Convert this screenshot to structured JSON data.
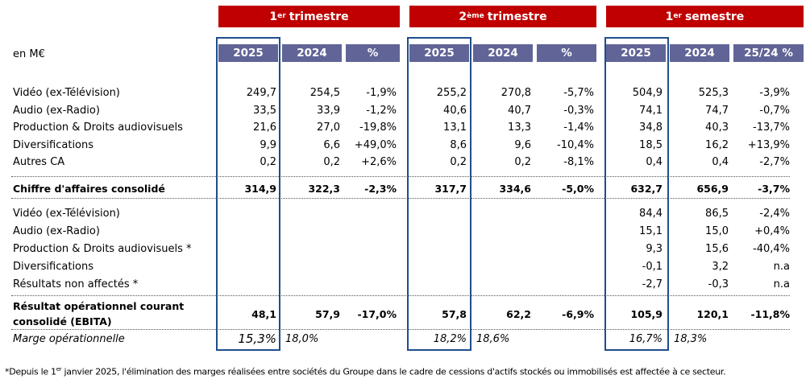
{
  "groups": [
    {
      "sup": "1",
      "sup_text": "er",
      "title": "trimestre"
    },
    {
      "sup": "2",
      "sup_text": "ème",
      "title": "trimestre"
    },
    {
      "sup": "1",
      "sup_text": "er",
      "title": "semestre"
    }
  ],
  "unit_label": "en M€",
  "column_headers": [
    "2025",
    "2024",
    "%",
    "2025",
    "2024",
    "%",
    "2025",
    "2024",
    "25/24 %"
  ],
  "revenue_rows": [
    {
      "label": "Vidéo (ex-Télévision)",
      "values": [
        "249,7",
        "254,5",
        "-1,9%",
        "255,2",
        "270,8",
        "-5,7%",
        "504,9",
        "525,3",
        "-3,9%"
      ]
    },
    {
      "label": "Audio (ex-Radio)",
      "values": [
        "33,5",
        "33,9",
        "-1,2%",
        "40,6",
        "40,7",
        "-0,3%",
        "74,1",
        "74,7",
        "-0,7%"
      ]
    },
    {
      "label": "Production & Droits audiovisuels",
      "values": [
        "21,6",
        "27,0",
        "-19,8%",
        "13,1",
        "13,3",
        "-1,4%",
        "34,8",
        "40,3",
        "-13,7%"
      ]
    },
    {
      "label": "Diversifications",
      "values": [
        "9,9",
        "6,6",
        "+49,0%",
        "8,6",
        "9,6",
        "-10,4%",
        "18,5",
        "16,2",
        "+13,9%"
      ]
    },
    {
      "label": "Autres CA",
      "values": [
        "0,2",
        "0,2",
        "+2,6%",
        "0,2",
        "0,2",
        "-8,1%",
        "0,4",
        "0,4",
        "-2,7%"
      ]
    }
  ],
  "revenue_total": {
    "label": "Chiffre d'affaires consolidé",
    "values": [
      "314,9",
      "322,3",
      "-2,3%",
      "317,7",
      "334,6",
      "-5,0%",
      "632,7",
      "656,9",
      "-3,7%"
    ]
  },
  "ebita_rows": [
    {
      "label": "Vidéo (ex-Télévision)",
      "values": [
        "",
        "",
        "",
        "",
        "",
        "",
        "84,4",
        "86,5",
        "-2,4%"
      ]
    },
    {
      "label": "Audio (ex-Radio)",
      "values": [
        "",
        "",
        "",
        "",
        "",
        "",
        "15,1",
        "15,0",
        "+0,4%"
      ]
    },
    {
      "label": "Production & Droits audiovisuels *",
      "values": [
        "",
        "",
        "",
        "",
        "",
        "",
        "9,3",
        "15,6",
        "-40,4%"
      ]
    },
    {
      "label": "Diversifications",
      "values": [
        "",
        "",
        "",
        "",
        "",
        "",
        "-0,1",
        "3,2",
        "n.a"
      ]
    },
    {
      "label": "Résultats non affectés *",
      "values": [
        "",
        "",
        "",
        "",
        "",
        "",
        "-2,7",
        "-0,3",
        "n.a"
      ]
    }
  ],
  "ebita_total": {
    "label_line1": "Résultat opérationnel courant",
    "label_line2": "consolidé (EBITA)",
    "values": [
      "48,1",
      "57,9",
      "-17,0%",
      "57,8",
      "62,2",
      "-6,9%",
      "105,9",
      "120,1",
      "-11,8%"
    ]
  },
  "margin": {
    "label": "Marge opérationnelle",
    "values": [
      "15,3%",
      "18,0%",
      "",
      "18,2%",
      "18,6%",
      "",
      "16,7%",
      "18,3%",
      ""
    ]
  },
  "footnote": {
    "prefix": "*Depuis le 1",
    "sup": "er",
    "text": " janvier 2025, l'élimination des marges réalisées entre sociétés du Groupe dans le cadre de cessions d'actifs stockés ou immobilisés est affectée à ce secteur."
  },
  "colors": {
    "group_header": "#c00000",
    "column_header": "#616496",
    "frame": "#1f4e8c"
  }
}
